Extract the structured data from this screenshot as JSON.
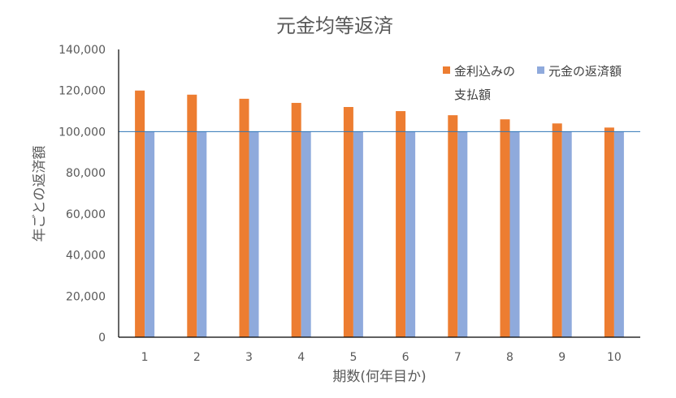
{
  "chart_data": {
    "type": "bar",
    "title": "元金均等返済",
    "xlabel": "期数(何年目か)",
    "ylabel": "年ごとの返済額",
    "categories": [
      "1",
      "2",
      "3",
      "4",
      "5",
      "6",
      "7",
      "8",
      "9",
      "10"
    ],
    "series": [
      {
        "name": "金利込みの支払額",
        "color": "#ED7D31",
        "values": [
          120000,
          118000,
          116000,
          114000,
          112000,
          110000,
          108000,
          106000,
          104000,
          102000
        ]
      },
      {
        "name": "元金の返済額",
        "color": "#8FAADC",
        "values": [
          100000,
          100000,
          100000,
          100000,
          100000,
          100000,
          100000,
          100000,
          100000,
          100000
        ]
      }
    ],
    "ylim": [
      0,
      140000
    ],
    "yticks": [
      0,
      20000,
      40000,
      60000,
      80000,
      100000,
      120000,
      140000
    ],
    "ytick_labels": [
      "0",
      "20,000",
      "40,000",
      "60,000",
      "80,000",
      "100,000",
      "120,000",
      "140,000"
    ],
    "reference_line": {
      "value": 100000,
      "color": "#2E75B6"
    },
    "legend": {
      "position": "top-right",
      "entries": [
        {
          "label_lines": [
            "金利込みの",
            "支払額"
          ],
          "color": "#ED7D31"
        },
        {
          "label_lines": [
            "元金の返済額"
          ],
          "color": "#8FAADC"
        }
      ]
    },
    "grid": false
  }
}
